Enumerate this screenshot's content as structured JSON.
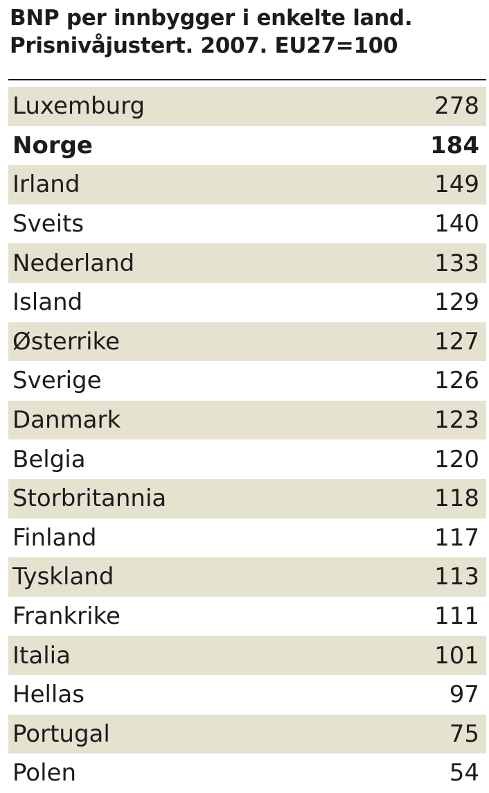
{
  "colors": {
    "shaded_row": "#e5e2d0",
    "text": "#1c1c1c",
    "rule": "#1a1a1a"
  },
  "chart_data": {
    "type": "table",
    "title": "BNP per innbygger i enkelte land.",
    "subtitle": "Prisnivåjustert. 2007. EU27=100",
    "highlighted": "Norge",
    "rows": [
      {
        "country": "Luxemburg",
        "value": 278
      },
      {
        "country": "Norge",
        "value": 184
      },
      {
        "country": "Irland",
        "value": 149
      },
      {
        "country": "Sveits",
        "value": 140
      },
      {
        "country": "Nederland",
        "value": 133
      },
      {
        "country": "Island",
        "value": 129
      },
      {
        "country": "Østerrike",
        "value": 127
      },
      {
        "country": "Sverige",
        "value": 126
      },
      {
        "country": "Danmark",
        "value": 123
      },
      {
        "country": "Belgia",
        "value": 120
      },
      {
        "country": "Storbritannia",
        "value": 118
      },
      {
        "country": "Finland",
        "value": 117
      },
      {
        "country": "Tyskland",
        "value": 113
      },
      {
        "country": "Frankrike",
        "value": 111
      },
      {
        "country": "Italia",
        "value": 101
      },
      {
        "country": "Hellas",
        "value": 97
      },
      {
        "country": "Portugal",
        "value": 75
      },
      {
        "country": "Polen",
        "value": 54
      }
    ]
  }
}
